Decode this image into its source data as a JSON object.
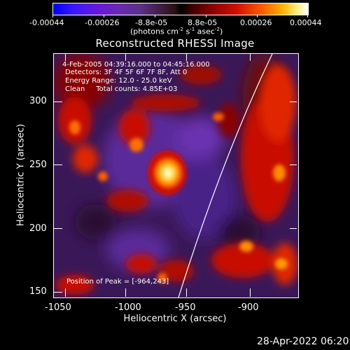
{
  "colorbar": {
    "tick_labels": [
      "-0.00044",
      "-0.00026",
      "-8.8e-05",
      "8.8e-05",
      "0.00026",
      "0.00044"
    ],
    "units_prefix": "(photons cm",
    "units_sup1": "-2",
    "units_mid": " s",
    "units_sup2": "-1",
    "units_end": " asec",
    "units_sup3": "-2",
    "units_close": ")"
  },
  "plot": {
    "title": "Reconstructed RHESSI Image",
    "xlabel": "Heliocentric X (arcsec)",
    "ylabel": "Heliocentric Y (arcsec)",
    "x_ticks": [
      "-1050",
      "-1000",
      "-950",
      "-900"
    ],
    "y_ticks": [
      "300",
      "250",
      "200",
      "150"
    ]
  },
  "annotations": {
    "time_range": "4-Feb-2005 04:39:16.000 to 04:45:16.000",
    "detectors": "Detectors: 3F 4F 5F 6F 7F 8F, Att 0",
    "energy": "Energy Range: 12.0 - 25.0 keV",
    "clean": "Clean     Total counts: 4.85E+03",
    "peak": "Position of Peak = [-964,243]"
  },
  "footer": {
    "timestamp": "28-Apr-2022 06:20"
  },
  "chart_data": {
    "type": "heatmap",
    "title": "Reconstructed RHESSI Image",
    "xlabel": "Heliocentric X (arcsec)",
    "ylabel": "Heliocentric Y (arcsec)",
    "xlim": [
      -1064,
      -866
    ],
    "ylim": [
      146,
      333
    ],
    "colorbar_range": [
      -0.00044,
      0.00044
    ],
    "peak": [
      -964,
      243
    ]
  }
}
